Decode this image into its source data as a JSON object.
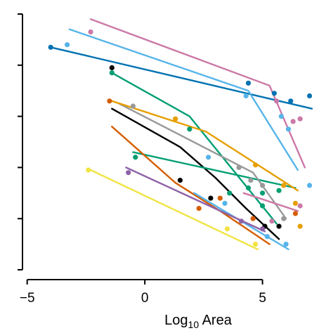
{
  "chart_data": {
    "type": "scatter",
    "title": "",
    "xlabel": "Log10 Area",
    "xlabel_parts": {
      "base": "Log",
      "sub": "10",
      "rest": " Area"
    },
    "ylabel": "",
    "xlim": [
      -5.2,
      7.4
    ],
    "ylim": [
      0,
      10
    ],
    "x_ticks": [
      {
        "value": -5,
        "label": "−5"
      },
      {
        "value": 0,
        "label": "0"
      },
      {
        "value": 5,
        "label": "5"
      }
    ],
    "y_ticks": [
      0,
      2,
      4,
      6,
      8,
      10
    ],
    "y_tick_labels_shown": false,
    "grid": false,
    "legend": "none",
    "series": [
      {
        "color": "#0072B2",
        "line": [
          [
            -4.0,
            8.7
          ],
          [
            7.1,
            6.3
          ]
        ],
        "points": [
          [
            -4.0,
            8.7
          ],
          [
            4.4,
            7.3
          ],
          [
            5.5,
            6.9
          ],
          [
            6.2,
            6.6
          ],
          [
            7.0,
            6.8
          ]
        ]
      },
      {
        "color": "#CC79A7",
        "line": [
          [
            -2.3,
            9.8
          ],
          [
            5.3,
            7.2
          ],
          [
            6.8,
            4.0
          ]
        ],
        "points": [
          [
            -2.3,
            9.3
          ],
          [
            5.6,
            6.6
          ],
          [
            6.3,
            5.8
          ],
          [
            6.6,
            5.9
          ]
        ]
      },
      {
        "color": "#56B4E9",
        "line": [
          [
            -3.2,
            9.4
          ],
          [
            4.4,
            7.0
          ],
          [
            6.5,
            3.9
          ]
        ],
        "points": [
          [
            -3.3,
            8.8
          ],
          [
            4.3,
            6.8
          ],
          [
            5.8,
            6.0
          ],
          [
            6.1,
            5.5
          ],
          [
            7.0,
            3.3
          ]
        ]
      },
      {
        "color": "#000000",
        "line": [
          [
            -1.4,
            6.3
          ],
          [
            1.5,
            4.8
          ],
          [
            3.0,
            3.6
          ],
          [
            4.3,
            2.4
          ],
          [
            5.7,
            1.2
          ]
        ],
        "points": [
          [
            -1.4,
            7.9
          ],
          [
            1.5,
            3.5
          ],
          [
            2.8,
            2.8
          ],
          [
            5.1,
            1.7
          ],
          [
            5.7,
            1.7
          ]
        ]
      },
      {
        "color": "#009E73",
        "line": [
          [
            -0.5,
            4.6
          ],
          [
            6.4,
            3.2
          ]
        ],
        "points": [
          [
            -0.4,
            4.4
          ],
          [
            3.6,
            3.0
          ],
          [
            5.0,
            3.0
          ],
          [
            5.7,
            3.1
          ]
        ]
      },
      {
        "color": "#009E73",
        "line": [
          [
            -1.4,
            7.7
          ],
          [
            1.9,
            6.0
          ],
          [
            5.6,
            1.8
          ]
        ],
        "points": [
          [
            -1.4,
            7.7
          ],
          [
            1.9,
            5.5
          ],
          [
            4.4,
            3.2
          ],
          [
            5.0,
            2.5
          ]
        ]
      },
      {
        "color": "#999999",
        "line": [
          [
            -1.1,
            6.5
          ],
          [
            4.6,
            3.8
          ],
          [
            6.0,
            2.0
          ]
        ],
        "points": [
          [
            -0.5,
            6.4
          ],
          [
            4.0,
            4.0
          ],
          [
            4.5,
            3.5
          ],
          [
            5.0,
            3.3
          ],
          [
            5.9,
            2.0
          ]
        ]
      },
      {
        "color": "#E69F00",
        "line": [
          [
            -1.4,
            6.6
          ],
          [
            2.6,
            5.4
          ],
          [
            6.5,
            3.1
          ]
        ],
        "points": [
          [
            1.3,
            5.9
          ],
          [
            4.7,
            4.1
          ],
          [
            5.9,
            3.3
          ],
          [
            6.4,
            2.6
          ],
          [
            6.6,
            1.7
          ]
        ]
      },
      {
        "color": "#D55E00",
        "line": [
          [
            -1.4,
            5.6
          ],
          [
            1.3,
            3.4
          ],
          [
            3.2,
            2.3
          ],
          [
            5.3,
            1.0
          ]
        ],
        "points": [
          [
            -1.5,
            6.6
          ],
          [
            2.3,
            2.4
          ],
          [
            3.2,
            2.8
          ],
          [
            4.6,
            2.0
          ],
          [
            6.4,
            2.2
          ]
        ]
      },
      {
        "color": "#CC79A7",
        "line": [
          [
            4.2,
            3.0
          ],
          [
            6.5,
            2.3
          ]
        ],
        "points": [
          [
            6.6,
            2.5
          ],
          [
            5.4,
            1.9
          ]
        ]
      },
      {
        "color": "#56B4E9",
        "line": [
          [
            2.1,
            3.0
          ],
          [
            6.1,
            0.8
          ]
        ],
        "points": [
          [
            2.7,
            4.4
          ],
          [
            3.4,
            2.6
          ],
          [
            5.2,
            1.3
          ],
          [
            6.0,
            1.0
          ]
        ]
      },
      {
        "color": "#8F62A8",
        "line": [
          [
            -0.8,
            4.0
          ],
          [
            5.1,
            1.5
          ]
        ],
        "points": [
          [
            -0.7,
            3.8
          ],
          [
            4.1,
            1.9
          ],
          [
            5.0,
            1.6
          ]
        ]
      },
      {
        "color": "#F0E442",
        "line": [
          [
            -2.3,
            3.9
          ],
          [
            4.8,
            0.8
          ]
        ],
        "points": [
          [
            -2.4,
            3.9
          ],
          [
            3.5,
            1.6
          ],
          [
            4.7,
            1.0
          ]
        ]
      }
    ]
  }
}
